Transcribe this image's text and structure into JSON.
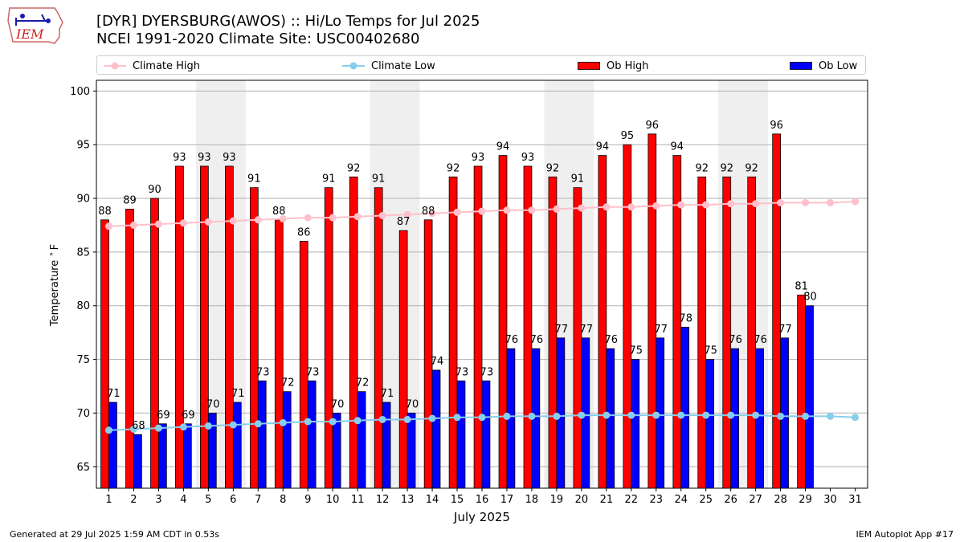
{
  "header": {
    "title_line1": "[DYR] DYERSBURG(AWOS) :: Hi/Lo Temps for Jul 2025",
    "title_line2": "NCEI 1991-2020 Climate Site: USC00402680"
  },
  "logo": {
    "text": "IEM",
    "color": "#cc2222"
  },
  "footer": {
    "left": "Generated at 29 Jul 2025 1:59 AM CDT in 0.53s",
    "right": "IEM Autoplot App #17"
  },
  "chart_data": {
    "type": "bar",
    "xlabel": "July 2025",
    "ylabel": "Temperature $^\\circ$F",
    "ylim": [
      63,
      101
    ],
    "yticks": [
      65,
      70,
      75,
      80,
      85,
      90,
      95,
      100
    ],
    "grid": "horizontal",
    "legend_placement": "top",
    "days": [
      1,
      2,
      3,
      4,
      5,
      6,
      7,
      8,
      9,
      10,
      11,
      12,
      13,
      14,
      15,
      16,
      17,
      18,
      19,
      20,
      21,
      22,
      23,
      24,
      25,
      26,
      27,
      28,
      29,
      30,
      31
    ],
    "weekend_shading": [
      [
        5,
        6
      ],
      [
        12,
        13
      ],
      [
        19,
        20
      ],
      [
        26,
        27
      ]
    ],
    "series": [
      {
        "name": "Ob High",
        "kind": "bar",
        "color": "#ff0000",
        "values": [
          88,
          89,
          90,
          93,
          93,
          93,
          91,
          88,
          86,
          91,
          92,
          91,
          87,
          88,
          92,
          93,
          94,
          93,
          92,
          91,
          94,
          95,
          96,
          94,
          92,
          92,
          92,
          96,
          81
        ]
      },
      {
        "name": "Ob Low",
        "kind": "bar",
        "color": "#0000ff",
        "values": [
          71,
          68,
          69,
          69,
          70,
          71,
          73,
          72,
          73,
          70,
          72,
          71,
          70,
          74,
          73,
          73,
          76,
          76,
          77,
          77,
          76,
          75,
          77,
          78,
          75,
          76,
          76,
          77,
          80
        ]
      },
      {
        "name": "Climate High",
        "kind": "line",
        "color": "#ffc0cb",
        "values": [
          87.4,
          87.5,
          87.6,
          87.7,
          87.8,
          87.9,
          88.0,
          88.1,
          88.2,
          88.2,
          88.3,
          88.4,
          88.5,
          88.6,
          88.7,
          88.8,
          88.9,
          88.9,
          89.0,
          89.1,
          89.2,
          89.2,
          89.3,
          89.4,
          89.4,
          89.5,
          89.5,
          89.6,
          89.6,
          89.6,
          89.7
        ]
      },
      {
        "name": "Climate Low",
        "kind": "line",
        "color": "#87ceeb",
        "values": [
          68.4,
          68.5,
          68.6,
          68.7,
          68.8,
          68.9,
          69.0,
          69.1,
          69.2,
          69.2,
          69.3,
          69.4,
          69.4,
          69.5,
          69.6,
          69.6,
          69.7,
          69.7,
          69.7,
          69.8,
          69.8,
          69.8,
          69.8,
          69.8,
          69.8,
          69.8,
          69.8,
          69.7,
          69.7,
          69.7,
          69.6
        ]
      }
    ]
  }
}
